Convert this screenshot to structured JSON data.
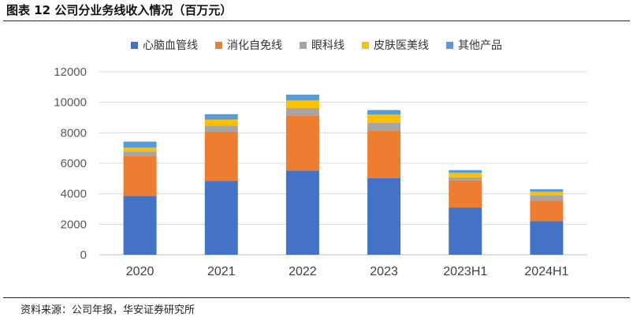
{
  "figure": {
    "title": "图表 12 公司分业务线收入情况（百万元）",
    "source": "资料来源：公司年报，华安证券研究所"
  },
  "chart_data": {
    "type": "bar",
    "stacked": true,
    "title": "公司分业务线收入情况（百万元）",
    "xlabel": "",
    "ylabel": "",
    "ylim": [
      0,
      12000
    ],
    "yticks": [
      0,
      2000,
      4000,
      6000,
      8000,
      10000,
      12000
    ],
    "ytick_labels": [
      "0",
      "2000",
      "4000",
      "6000",
      "8000",
      "10000",
      "12000"
    ],
    "grid": true,
    "legend_position": "top",
    "categories": [
      "2020",
      "2021",
      "2022",
      "2023",
      "2023H1",
      "2024H1"
    ],
    "series": [
      {
        "name": "心脑血管线",
        "color": "#4472C4",
        "values": [
          3850,
          4850,
          5520,
          5020,
          3100,
          2200
        ]
      },
      {
        "name": "消化自免线",
        "color": "#ED7D31",
        "values": [
          2620,
          3220,
          3620,
          3100,
          1780,
          1350
        ]
      },
      {
        "name": "眼科线",
        "color": "#A5A5A5",
        "values": [
          300,
          400,
          480,
          520,
          200,
          330
        ]
      },
      {
        "name": "皮肤医美线",
        "color": "#FFC000",
        "values": [
          250,
          400,
          500,
          550,
          300,
          250
        ]
      },
      {
        "name": "其他产品",
        "color": "#5B9BD5",
        "values": [
          400,
          350,
          380,
          300,
          170,
          170
        ]
      }
    ]
  }
}
